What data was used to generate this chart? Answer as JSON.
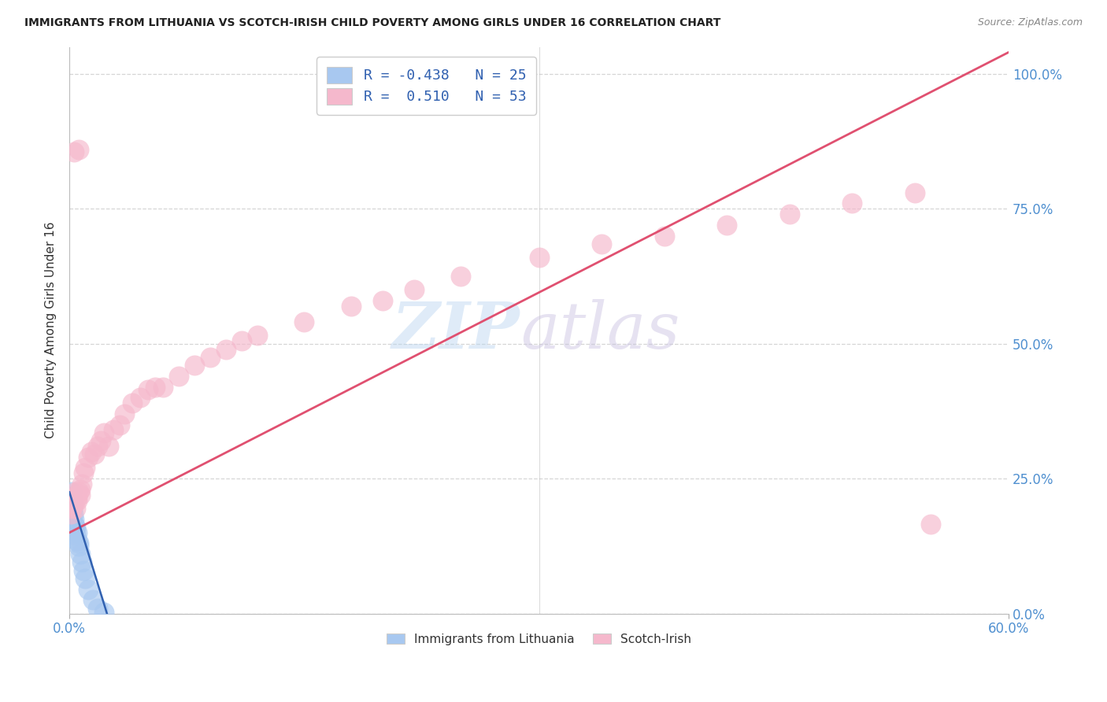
{
  "title": "IMMIGRANTS FROM LITHUANIA VS SCOTCH-IRISH CHILD POVERTY AMONG GIRLS UNDER 16 CORRELATION CHART",
  "source": "Source: ZipAtlas.com",
  "ylabel_label": "Child Poverty Among Girls Under 16",
  "legend_labels_bottom": [
    "Immigrants from Lithuania",
    "Scotch-Irish"
  ],
  "blue_color": "#a8c8f0",
  "pink_color": "#f5b8cc",
  "blue_line_color": "#3060b0",
  "pink_line_color": "#e05070",
  "background_color": "#ffffff",
  "grid_color": "#cccccc",
  "xlim": [
    0.0,
    0.6
  ],
  "ylim": [
    0.0,
    1.05
  ],
  "ytick_vals": [
    0.0,
    0.25,
    0.5,
    0.75,
    1.0
  ],
  "ytick_labels": [
    "0.0%",
    "25.0%",
    "50.0%",
    "75.0%",
    "100.0%"
  ],
  "xtick_left_label": "0.0%",
  "xtick_right_label": "60.0%",
  "blue_scatter_x": [
    0.0008,
    0.001,
    0.0012,
    0.0015,
    0.0018,
    0.002,
    0.002,
    0.0025,
    0.003,
    0.003,
    0.0035,
    0.004,
    0.004,
    0.005,
    0.005,
    0.006,
    0.006,
    0.007,
    0.008,
    0.009,
    0.01,
    0.012,
    0.015,
    0.018,
    0.022
  ],
  "blue_scatter_y": [
    0.175,
    0.195,
    0.215,
    0.225,
    0.21,
    0.195,
    0.205,
    0.185,
    0.175,
    0.165,
    0.155,
    0.145,
    0.16,
    0.135,
    0.15,
    0.125,
    0.13,
    0.11,
    0.095,
    0.08,
    0.065,
    0.045,
    0.025,
    0.01,
    0.002
  ],
  "pink_scatter_x": [
    0.001,
    0.0015,
    0.002,
    0.002,
    0.0025,
    0.003,
    0.003,
    0.004,
    0.004,
    0.005,
    0.005,
    0.006,
    0.007,
    0.007,
    0.008,
    0.009,
    0.01,
    0.012,
    0.014,
    0.016,
    0.018,
    0.02,
    0.022,
    0.025,
    0.028,
    0.032,
    0.035,
    0.04,
    0.045,
    0.05,
    0.055,
    0.06,
    0.07,
    0.08,
    0.09,
    0.1,
    0.11,
    0.12,
    0.15,
    0.18,
    0.2,
    0.22,
    0.25,
    0.3,
    0.34,
    0.38,
    0.42,
    0.46,
    0.5,
    0.54,
    0.003,
    0.006,
    0.55
  ],
  "pink_scatter_y": [
    0.185,
    0.195,
    0.205,
    0.21,
    0.2,
    0.215,
    0.205,
    0.195,
    0.225,
    0.215,
    0.21,
    0.225,
    0.22,
    0.23,
    0.24,
    0.26,
    0.27,
    0.29,
    0.3,
    0.295,
    0.31,
    0.32,
    0.335,
    0.31,
    0.34,
    0.35,
    0.37,
    0.39,
    0.4,
    0.415,
    0.42,
    0.42,
    0.44,
    0.46,
    0.475,
    0.49,
    0.505,
    0.515,
    0.54,
    0.57,
    0.58,
    0.6,
    0.625,
    0.66,
    0.685,
    0.7,
    0.72,
    0.74,
    0.76,
    0.78,
    0.855,
    0.86,
    0.165
  ],
  "pink_line_x": [
    0.0,
    0.6
  ],
  "pink_line_y": [
    0.15,
    1.04
  ],
  "blue_line_x": [
    0.0,
    0.024
  ],
  "blue_line_y": [
    0.225,
    0.0
  ]
}
